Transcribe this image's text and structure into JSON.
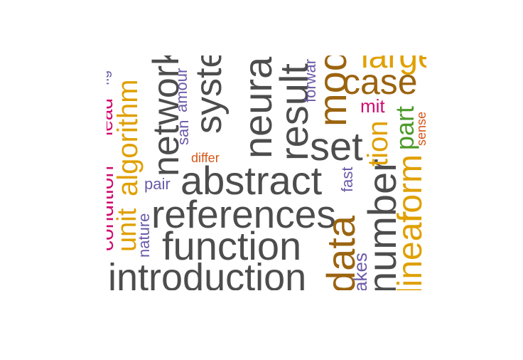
{
  "palette": {
    "dark": "#4d4d4d",
    "magenta": "#cf0a6f",
    "orange": "#e0a000",
    "brown": "#9b6410",
    "purple": "#6a5aa8",
    "red_orange": "#d5571a",
    "green": "#4e9a2a"
  },
  "words": [
    {
      "text": "introduction",
      "color": "dark"
    },
    {
      "text": "function",
      "color": "dark"
    },
    {
      "text": "references",
      "color": "dark"
    },
    {
      "text": "abstract",
      "color": "dark"
    },
    {
      "text": "set",
      "color": "dark"
    },
    {
      "text": "case",
      "color": "brown"
    },
    {
      "text": "number",
      "color": "dark"
    },
    {
      "text": "result",
      "color": "dark"
    },
    {
      "text": "neura",
      "color": "dark"
    },
    {
      "text": "system",
      "color": "dark"
    },
    {
      "text": "network",
      "color": "dark"
    },
    {
      "text": "algorithm",
      "color": "orange"
    },
    {
      "text": "condition",
      "color": "magenta"
    },
    {
      "text": "lead",
      "color": "magenta"
    },
    {
      "text": "fig",
      "color": "purple"
    },
    {
      "text": "unit",
      "color": "orange"
    },
    {
      "text": "nature",
      "color": "purple"
    },
    {
      "text": "pair",
      "color": "purple"
    },
    {
      "text": "san",
      "color": "purple"
    },
    {
      "text": "amour",
      "color": "purple"
    },
    {
      "text": "differ",
      "color": "red_orange"
    },
    {
      "text": "forwar",
      "color": "purple"
    },
    {
      "text": "model",
      "color": "brown"
    },
    {
      "text": "large",
      "color": "orange"
    },
    {
      "text": "mit",
      "color": "magenta"
    },
    {
      "text": "tion",
      "color": "orange"
    },
    {
      "text": "part",
      "color": "green"
    },
    {
      "text": "sense",
      "color": "red_orange"
    },
    {
      "text": "fast",
      "color": "purple"
    },
    {
      "text": "data",
      "color": "brown"
    },
    {
      "text": "akes",
      "color": "purple"
    },
    {
      "text": "form",
      "color": "orange"
    },
    {
      "text": "linear",
      "color": "orange"
    }
  ]
}
